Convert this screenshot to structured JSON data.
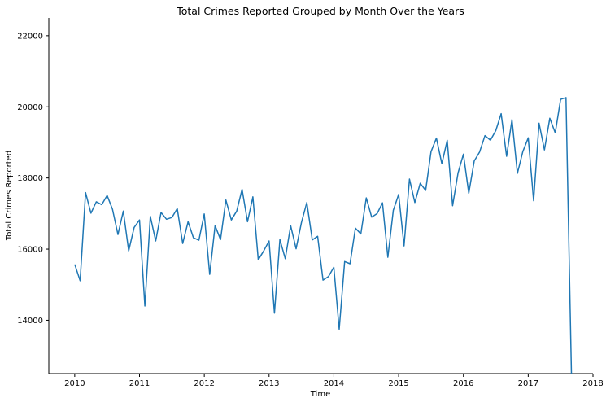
{
  "chart_data": {
    "type": "line",
    "title": "Total Crimes Reported Grouped by Month Over the Years",
    "xlabel": "Time",
    "ylabel": "Total Crimes Reported",
    "xlim": [
      2009.6,
      2018.0
    ],
    "ylim": [
      12500,
      22500
    ],
    "xticks": [
      2010,
      2011,
      2012,
      2013,
      2014,
      2015,
      2016,
      2017,
      2018
    ],
    "yticks": [
      14000,
      16000,
      18000,
      20000,
      22000
    ],
    "grid": false,
    "line_color": "#1f77b4",
    "x_unit": "year (monthly data, x = year + (month-1)/12)",
    "x": [
      2010.0,
      2010.083,
      2010.167,
      2010.25,
      2010.333,
      2010.417,
      2010.5,
      2010.583,
      2010.667,
      2010.75,
      2010.833,
      2010.917,
      2011.0,
      2011.083,
      2011.167,
      2011.25,
      2011.333,
      2011.417,
      2011.5,
      2011.583,
      2011.667,
      2011.75,
      2011.833,
      2011.917,
      2012.0,
      2012.083,
      2012.167,
      2012.25,
      2012.333,
      2012.417,
      2012.5,
      2012.583,
      2012.667,
      2012.75,
      2012.833,
      2012.917,
      2013.0,
      2013.083,
      2013.167,
      2013.25,
      2013.333,
      2013.417,
      2013.5,
      2013.583,
      2013.667,
      2013.75,
      2013.833,
      2013.917,
      2014.0,
      2014.083,
      2014.167,
      2014.25,
      2014.333,
      2014.417,
      2014.5,
      2014.583,
      2014.667,
      2014.75,
      2014.833,
      2014.917,
      2015.0,
      2015.083,
      2015.167,
      2015.25,
      2015.333,
      2015.417,
      2015.5,
      2015.583,
      2015.667,
      2015.75,
      2015.833,
      2015.917,
      2016.0,
      2016.083,
      2016.167,
      2016.25,
      2016.333,
      2016.417,
      2016.5,
      2016.583,
      2016.667,
      2016.75,
      2016.833,
      2016.917,
      2017.0,
      2017.083,
      2017.167,
      2017.25,
      2017.333,
      2017.417,
      2017.5,
      2017.583,
      2017.667
    ],
    "values": [
      15570,
      15110,
      17590,
      17010,
      17330,
      17250,
      17510,
      17120,
      16410,
      17070,
      15950,
      16610,
      16820,
      14400,
      16920,
      16230,
      17030,
      16840,
      16890,
      17140,
      16160,
      16770,
      16320,
      16250,
      16990,
      15290,
      16660,
      16270,
      17380,
      16820,
      17070,
      17680,
      16770,
      17470,
      15700,
      15950,
      16230,
      14200,
      16270,
      15730,
      16660,
      16010,
      16750,
      17310,
      16260,
      16360,
      15130,
      15230,
      15490,
      13750,
      15650,
      15590,
      16590,
      16430,
      17440,
      16900,
      17000,
      17300,
      15770,
      17090,
      17540,
      16090,
      17970,
      17310,
      17850,
      17650,
      18740,
      19120,
      18400,
      19060,
      17220,
      18140,
      18670,
      17570,
      18480,
      18730,
      19190,
      19060,
      19330,
      19810,
      18610,
      19640,
      18130,
      18740,
      19130,
      17360,
      19540,
      18790,
      19680,
      19270,
      20210,
      20260,
      12500
    ]
  }
}
